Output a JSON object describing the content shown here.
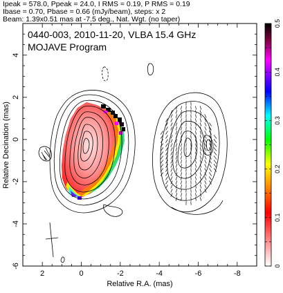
{
  "header": {
    "line1": "Ipeak = 578.0, Ppeak = 24.0, I RMS = 0.19, P RMS = 0.19",
    "line2": "Ibase = 0.70, Pbase = 0.66 (mJy/beam), steps: x 2",
    "line3": "Beam: 1.39x0.51 mas at -7.5 deg., Nat. Wgt. (no taper)"
  },
  "plot": {
    "title_line1": "0440-003, 2010-11-20, VLBA 15.4 GHz",
    "title_line2": "MOJAVE Program"
  },
  "chart_data": {
    "type": "heatmap",
    "xlabel": "Relative R.A. (mas)",
    "ylabel": "Relative Decination (mas)",
    "xlim": [
      3,
      -9
    ],
    "ylim": [
      -6,
      5.5
    ],
    "x_ticks": [
      "2",
      "0",
      "-2",
      "-4",
      "-6",
      "-8"
    ],
    "y_ticks": [
      "4",
      "2",
      "0",
      "-2",
      "-4",
      "-6"
    ],
    "colorbar": {
      "range": [
        0,
        0.5
      ],
      "ticks": [
        "0",
        "0.1",
        "0.2",
        "0.3",
        "0.4",
        "0.5"
      ]
    }
  },
  "colors": {
    "axes": "#000000",
    "colorbar_stops": [
      "#ffffff",
      "#ff8080",
      "#ff0000",
      "#ff8000",
      "#ffff00",
      "#00ff00",
      "#00ffff",
      "#0000ff",
      "#ff00ff",
      "#000000"
    ]
  }
}
